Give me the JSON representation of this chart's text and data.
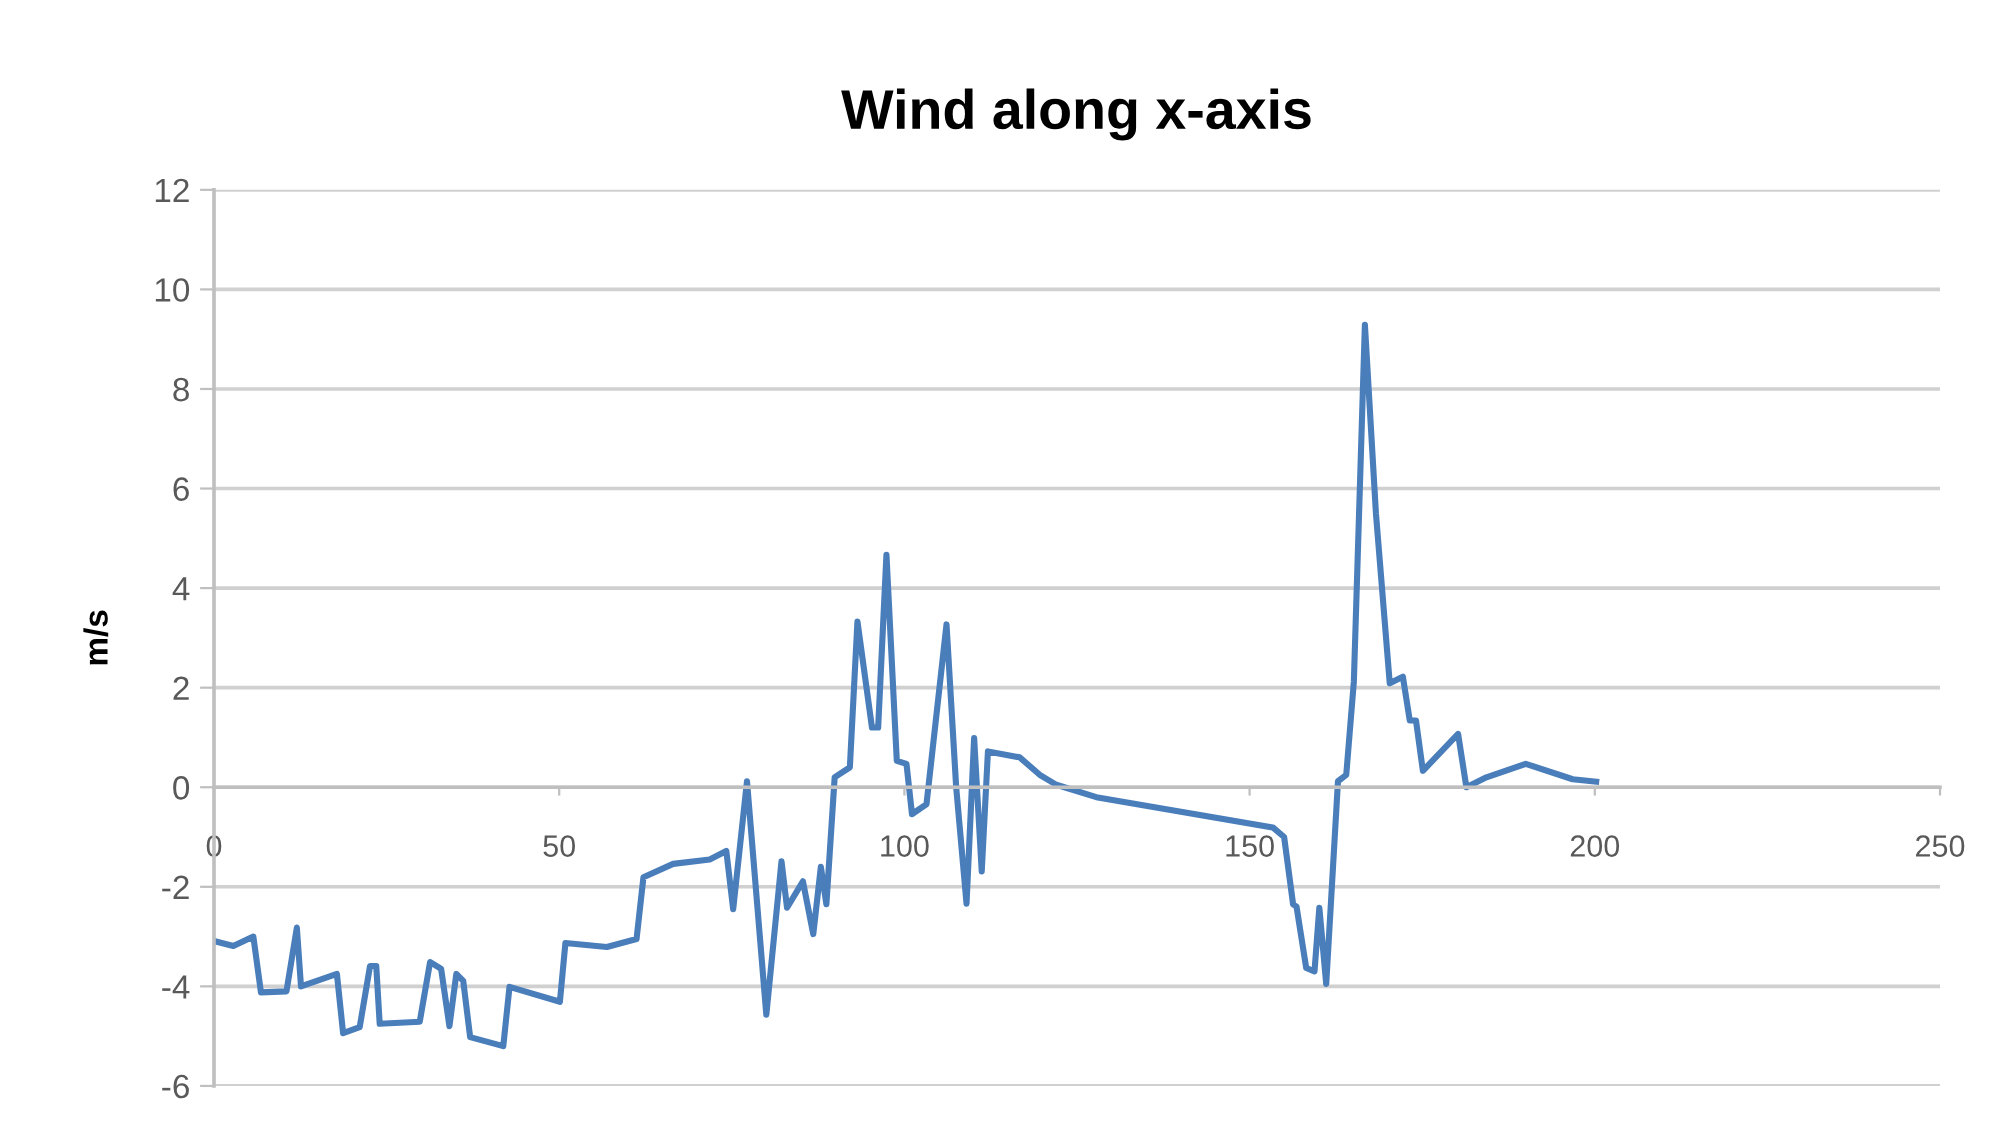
{
  "chart_data": {
    "type": "line",
    "title": "Wind along x-axis",
    "ylabel": "m/s",
    "xlim": [
      0,
      250
    ],
    "xticks": [
      0,
      50,
      100,
      150,
      200,
      250
    ],
    "ylim": [
      -6,
      12
    ],
    "yticks": [
      -6,
      -4,
      -2,
      0,
      2,
      4,
      6,
      8,
      10,
      12
    ],
    "grid": "y",
    "legend": false,
    "marker": "none",
    "line_style": "solid",
    "series": [
      {
        "color": "#4a7ebb",
        "x": [
          0,
          2.8,
          5.7,
          6.8,
          10.5,
          12,
          12.6,
          17.8,
          18.7,
          21.1,
          22.6,
          23.5,
          24,
          29.8,
          31.3,
          32.9,
          34.1,
          35.1,
          36.1,
          37.1,
          41.9,
          42.8,
          50.1,
          50.9,
          56.9,
          61.2,
          62.2,
          66.5,
          71.8,
          74.2,
          75.2,
          77.2,
          80,
          82.2,
          83,
          85.3,
          86.8,
          87.9,
          88.7,
          89.9,
          92.1,
          93.2,
          95.3,
          96.2,
          97.4,
          98.9,
          100.3,
          101.1,
          103.2,
          106.1,
          107.5,
          109,
          110.1,
          111.2,
          112.1,
          116.7,
          119.6,
          122,
          127.8,
          153.4,
          155,
          156.3,
          156.8,
          158.2,
          159.4,
          160.1,
          161.1,
          162.8,
          164,
          165.1,
          166.7,
          168.3,
          170.3,
          172.2,
          173.2,
          174.1,
          175.1,
          180.2,
          181.4,
          184.3,
          190,
          196.8,
          200.2
        ],
        "values": [
          -3.09,
          -3.19,
          -3.0,
          -4.12,
          -4.1,
          -2.82,
          -4.0,
          -3.75,
          -4.94,
          -4.82,
          -3.59,
          -3.59,
          -4.75,
          -4.71,
          -3.51,
          -3.65,
          -4.8,
          -3.75,
          -3.89,
          -5.02,
          -5.2,
          -4.01,
          -4.31,
          -3.13,
          -3.21,
          -3.05,
          -1.81,
          -1.54,
          -1.45,
          -1.28,
          -2.45,
          0.12,
          -4.57,
          -1.49,
          -2.42,
          -1.89,
          -2.95,
          -1.6,
          -2.35,
          0.2,
          0.4,
          3.33,
          1.2,
          1.2,
          4.67,
          0.53,
          0.47,
          -0.54,
          -0.34,
          3.27,
          0.0,
          -2.34,
          0.99,
          -1.69,
          0.72,
          0.6,
          0.25,
          0.05,
          -0.2,
          -0.81,
          -1.0,
          -2.35,
          -2.4,
          -3.63,
          -3.7,
          -2.42,
          -3.95,
          0.12,
          0.25,
          2.12,
          9.29,
          5.5,
          2.09,
          2.22,
          1.34,
          1.34,
          0.33,
          1.07,
          0.0,
          0.2,
          0.47,
          0.16,
          0.11
        ]
      }
    ]
  }
}
